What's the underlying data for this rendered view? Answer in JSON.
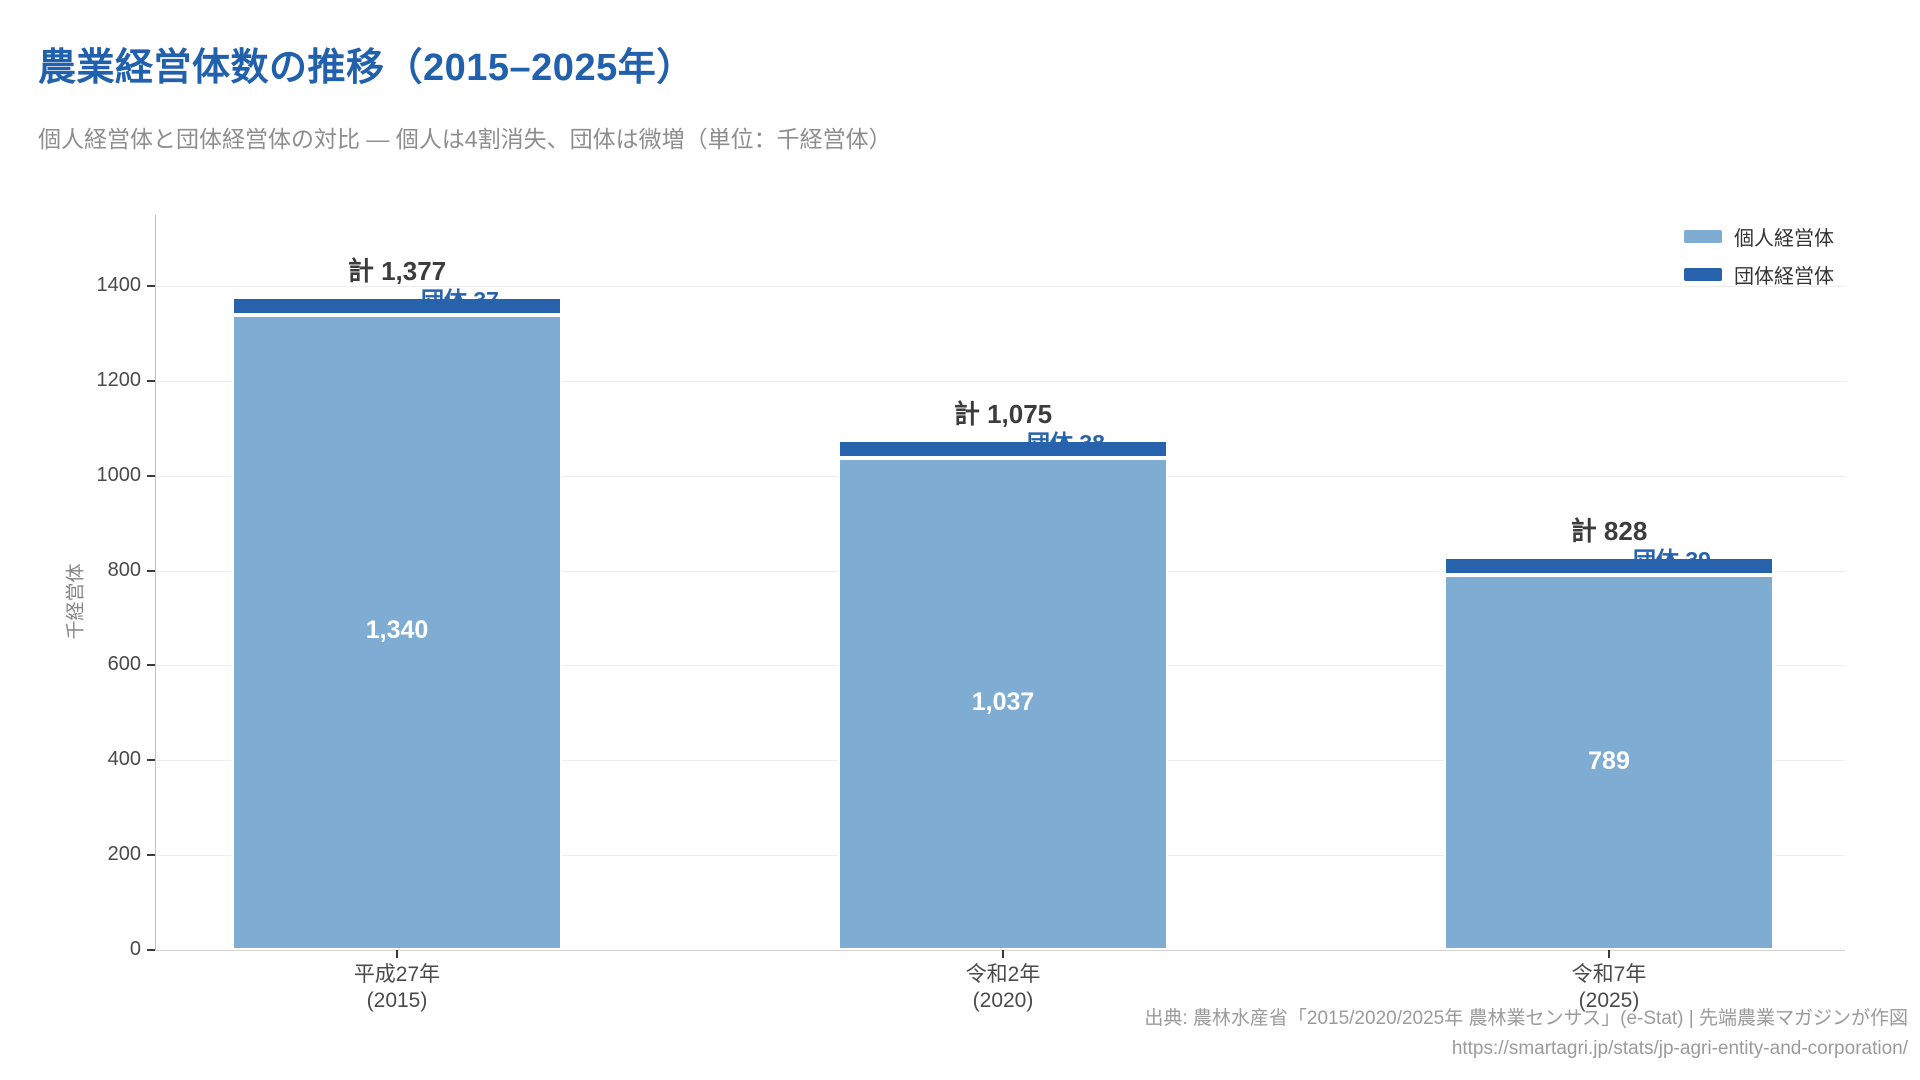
{
  "header": {
    "title": "農業経営体数の推移（2015–2025年）",
    "subtitle": "個人経営体と団体経営体の対比 — 個人は4割消失、団体は微増（単位：千経営体）"
  },
  "colors": {
    "title_blue": "#2160AC",
    "individual_blue": "#7EACD3",
    "group_blue": "#2663AC",
    "grid": "#EDEDED"
  },
  "legend": {
    "items": [
      {
        "label": "個人経営体",
        "color": "#7EACD3"
      },
      {
        "label": "団体経営体",
        "color": "#2663AC"
      }
    ]
  },
  "chart_data": {
    "type": "bar",
    "stacked": true,
    "title": "農業経営体数の推移（2015–2025年）",
    "categories": [
      [
        "平成27年",
        "(2015)"
      ],
      [
        "令和2年",
        "(2020)"
      ],
      [
        "令和7年",
        "(2025)"
      ]
    ],
    "series": [
      {
        "name": "個人経営体",
        "color": "#7EACD3",
        "values": [
          1340,
          1037,
          789
        ]
      },
      {
        "name": "団体経営体",
        "color": "#2663AC",
        "values": [
          37,
          38,
          39
        ]
      }
    ],
    "totals": [
      1377,
      1075,
      828
    ],
    "labels": {
      "totals": [
        "計 1,377",
        "計 1,075",
        "計 828"
      ],
      "individual": [
        "1,340",
        "1,037",
        "789"
      ],
      "group": [
        "団体 37",
        "団体 38",
        "団体 39"
      ]
    },
    "ylabel": "千経営体",
    "yticks": [
      0,
      200,
      400,
      600,
      800,
      1000,
      1200,
      1400
    ],
    "ylim": [
      0,
      1550
    ],
    "grid": true,
    "legend_position": "top-right"
  },
  "footer": {
    "source": "出典: 農林水産省「2015/2020/2025年 農林業センサス」(e-Stat) | 先端農業マガジンが作図",
    "url": "https://smartagri.jp/stats/jp-agri-entity-and-corporation/"
  }
}
